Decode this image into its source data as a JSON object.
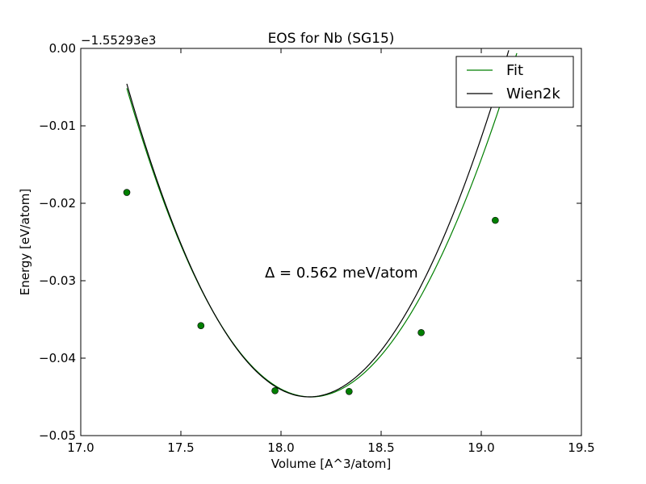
{
  "chart_data": {
    "type": "scatter",
    "title": "EOS for Nb (SG15)",
    "xlabel": "Volume [A^3/atom]",
    "ylabel": "Energy [eV/atom]",
    "y_offset_label": "−1.55293e3",
    "annotation": "Δ = 0.562 meV/atom",
    "xlim": [
      17.0,
      19.5
    ],
    "ylim": [
      -0.05,
      0.0
    ],
    "xticks": [
      17.0,
      17.5,
      18.0,
      18.5,
      19.0,
      19.5
    ],
    "xtick_labels": [
      "17.0",
      "17.5",
      "18.0",
      "18.5",
      "19.0",
      "19.5"
    ],
    "yticks": [
      0.0,
      -0.01,
      -0.02,
      -0.03,
      -0.04,
      -0.05
    ],
    "ytick_labels": [
      "0.00",
      "−0.01",
      "−0.02",
      "−0.03",
      "−0.04",
      "−0.05"
    ],
    "grid": false,
    "legend_position": "top-right",
    "points": {
      "color": "#007f00",
      "x": [
        17.23,
        17.6,
        17.97,
        18.34,
        18.7,
        19.07
      ],
      "y": [
        -0.0186,
        -0.0358,
        -0.0442,
        -0.0443,
        -0.0367,
        -0.0222
      ]
    },
    "series": [
      {
        "name": "Fit",
        "color": "#007f00",
        "v0": 18.15,
        "e0": -0.045,
        "a": 0.0447,
        "c": -0.0026,
        "xmin": 17.23,
        "xmax": 19.45
      },
      {
        "name": "Wien2k",
        "color": "#000000",
        "v0": 18.14,
        "e0": -0.045,
        "a": 0.047,
        "c": -0.002,
        "xmin": 17.23,
        "xmax": 19.45
      }
    ]
  }
}
